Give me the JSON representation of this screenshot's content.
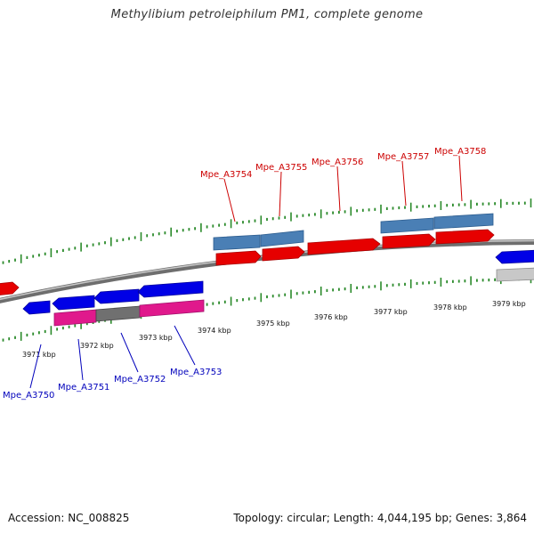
{
  "title": "Methylibium petroleiphilum PM1, complete genome",
  "footer": {
    "accession": "Accession: NC_008825",
    "summary": "Topology: circular; Length: 4,044,195 bp; Genes: 3,864"
  },
  "colors": {
    "background": "#ffffff",
    "backbone": "#8a8a8a",
    "tick": "#2a8a2a",
    "forward_gene": "#e60000",
    "forward_feature": "#4a7fb5",
    "reverse_gene": "#0000e6",
    "reverse_feature_magenta": "#e0198c",
    "reverse_feature_gray": "#707070",
    "forward_label": "#cc0000",
    "reverse_label": "#0000bb"
  },
  "kbp_labels": [
    "3971 kbp",
    "3972 kbp",
    "3973 kbp",
    "3974 kbp",
    "3975 kbp",
    "3976 kbp",
    "3977 kbp",
    "3978 kbp",
    "3979 kbp"
  ],
  "forward_genes": [
    "Mpe_A3754",
    "Mpe_A3755",
    "Mpe_A3756",
    "Mpe_A3757",
    "Mpe_A3758"
  ],
  "reverse_genes": [
    "Mpe_A3750",
    "Mpe_A3751",
    "Mpe_A3752",
    "Mpe_A3753"
  ]
}
